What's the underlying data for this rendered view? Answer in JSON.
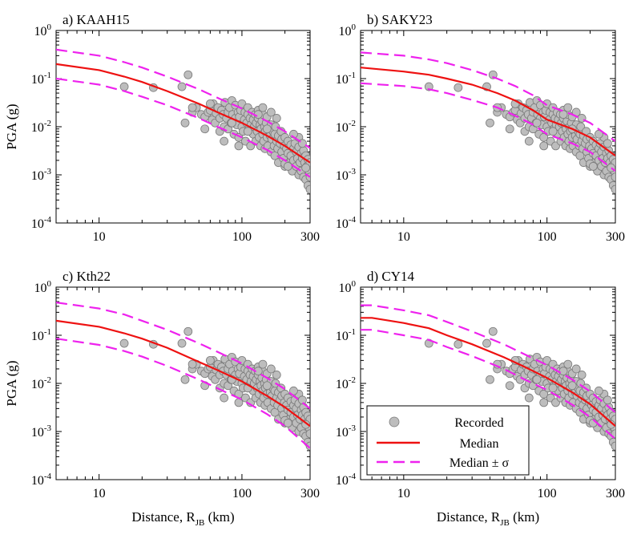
{
  "figure": {
    "ylabel": "PGA (g)",
    "xlabel_main": "Distance, R",
    "xlabel_sub": "JB",
    "xlabel_unit": " (km)",
    "x_ticks": [
      10,
      100,
      300
    ],
    "x_tick_labels": [
      "10",
      "100",
      "300"
    ],
    "y_tick_labels": [
      {
        "base": "10",
        "exp": "0"
      },
      {
        "base": "10",
        "exp": "-1"
      },
      {
        "base": "10",
        "exp": "-2"
      },
      {
        "base": "10",
        "exp": "-3"
      },
      {
        "base": "10",
        "exp": "-4"
      }
    ],
    "legend": {
      "placement": "bottom-right of panel d",
      "recorded": "Recorded",
      "median": "Median",
      "median_sigma": "Median ± σ"
    },
    "colors": {
      "median": "#ee1111",
      "sigma": "#ee22ee",
      "point_fill": "#bdbdbd",
      "point_stroke": "#7a7a7a"
    }
  },
  "chart_data": [
    {
      "type": "scatter",
      "title": "a) KAAH15",
      "x_scale": "log",
      "y_scale": "log",
      "xlim": [
        5,
        300
      ],
      "ylim": [
        0.0001,
        1
      ],
      "median": {
        "x": [
          5,
          10,
          15,
          20,
          30,
          50,
          70,
          100,
          150,
          200,
          300
        ],
        "y": [
          0.2,
          0.15,
          0.11,
          0.085,
          0.055,
          0.03,
          0.019,
          0.012,
          0.0065,
          0.004,
          0.0018
        ]
      },
      "plus_sigma": {
        "x": [
          5,
          10,
          15,
          20,
          30,
          50,
          70,
          100,
          150,
          200,
          300
        ],
        "y": [
          0.4,
          0.3,
          0.22,
          0.17,
          0.11,
          0.06,
          0.038,
          0.024,
          0.013,
          0.008,
          0.0036
        ]
      },
      "minus_sigma": {
        "x": [
          5,
          10,
          15,
          20,
          30,
          50,
          70,
          100,
          150,
          200,
          300
        ],
        "y": [
          0.1,
          0.075,
          0.055,
          0.042,
          0.028,
          0.015,
          0.0095,
          0.006,
          0.0033,
          0.002,
          0.0009
        ]
      }
    },
    {
      "type": "scatter",
      "title": "b) SAKY23",
      "x_scale": "log",
      "y_scale": "log",
      "xlim": [
        5,
        300
      ],
      "ylim": [
        0.0001,
        1
      ],
      "median": {
        "x": [
          5,
          10,
          15,
          20,
          30,
          45,
          60,
          80,
          100,
          150,
          200,
          300
        ],
        "y": [
          0.17,
          0.14,
          0.12,
          0.1,
          0.075,
          0.05,
          0.035,
          0.022,
          0.014,
          0.009,
          0.006,
          0.0025
        ]
      },
      "plus_sigma": {
        "x": [
          5,
          10,
          15,
          20,
          30,
          45,
          60,
          80,
          100,
          150,
          200,
          300
        ],
        "y": [
          0.35,
          0.3,
          0.25,
          0.21,
          0.15,
          0.1,
          0.07,
          0.045,
          0.028,
          0.018,
          0.012,
          0.005
        ]
      },
      "minus_sigma": {
        "x": [
          5,
          10,
          15,
          20,
          30,
          45,
          60,
          80,
          100,
          150,
          200,
          300
        ],
        "y": [
          0.08,
          0.07,
          0.06,
          0.05,
          0.036,
          0.025,
          0.017,
          0.011,
          0.007,
          0.0045,
          0.003,
          0.0012
        ]
      }
    },
    {
      "type": "scatter",
      "title": "c) Kth22",
      "x_scale": "log",
      "y_scale": "log",
      "xlim": [
        5,
        300
      ],
      "ylim": [
        0.0001,
        1
      ],
      "median": {
        "x": [
          5,
          10,
          15,
          20,
          30,
          50,
          70,
          100,
          150,
          200,
          300
        ],
        "y": [
          0.2,
          0.15,
          0.11,
          0.085,
          0.055,
          0.028,
          0.018,
          0.011,
          0.0055,
          0.0032,
          0.0013
        ]
      },
      "plus_sigma": {
        "x": [
          5,
          10,
          15,
          20,
          30,
          50,
          70,
          100,
          150,
          200,
          300
        ],
        "y": [
          0.48,
          0.36,
          0.27,
          0.2,
          0.13,
          0.068,
          0.043,
          0.026,
          0.013,
          0.0076,
          0.003
        ]
      },
      "minus_sigma": {
        "x": [
          5,
          10,
          15,
          20,
          30,
          50,
          70,
          100,
          150,
          200,
          300
        ],
        "y": [
          0.085,
          0.063,
          0.047,
          0.036,
          0.023,
          0.012,
          0.0075,
          0.0046,
          0.0023,
          0.0013,
          0.00045
        ]
      }
    },
    {
      "type": "scatter",
      "title": "d) CY14",
      "x_scale": "log",
      "y_scale": "log",
      "xlim": [
        5,
        300
      ],
      "ylim": [
        0.0001,
        1
      ],
      "median": {
        "x": [
          5,
          6,
          10,
          15,
          20,
          30,
          50,
          70,
          100,
          150,
          200,
          300
        ],
        "y": [
          0.23,
          0.23,
          0.18,
          0.14,
          0.1,
          0.065,
          0.035,
          0.022,
          0.013,
          0.0065,
          0.0037,
          0.0013
        ]
      },
      "plus_sigma": {
        "x": [
          5,
          6,
          10,
          15,
          20,
          30,
          50,
          70,
          100,
          150,
          200,
          300
        ],
        "y": [
          0.42,
          0.42,
          0.33,
          0.26,
          0.19,
          0.12,
          0.065,
          0.04,
          0.024,
          0.012,
          0.0068,
          0.0025
        ]
      },
      "minus_sigma": {
        "x": [
          5,
          6,
          10,
          15,
          20,
          30,
          50,
          70,
          100,
          150,
          200,
          300
        ],
        "y": [
          0.13,
          0.13,
          0.1,
          0.08,
          0.057,
          0.037,
          0.02,
          0.012,
          0.0073,
          0.0036,
          0.002,
          0.0007
        ]
      }
    }
  ],
  "recorded": {
    "x": [
      15,
      24,
      38,
      40,
      42,
      45,
      48,
      52,
      55,
      58,
      60,
      62,
      63,
      65,
      66,
      68,
      70,
      70,
      72,
      74,
      75,
      76,
      78,
      80,
      80,
      82,
      84,
      85,
      86,
      88,
      90,
      90,
      92,
      94,
      95,
      96,
      98,
      100,
      100,
      102,
      104,
      105,
      106,
      108,
      110,
      110,
      112,
      114,
      115,
      116,
      118,
      120,
      120,
      122,
      124,
      125,
      126,
      128,
      130,
      130,
      132,
      134,
      135,
      136,
      138,
      140,
      140,
      142,
      144,
      145,
      146,
      148,
      150,
      150,
      152,
      155,
      158,
      160,
      160,
      162,
      165,
      168,
      170,
      170,
      172,
      175,
      178,
      180,
      180,
      185,
      188,
      190,
      190,
      195,
      198,
      200,
      200,
      205,
      210,
      210,
      215,
      220,
      220,
      225,
      230,
      230,
      235,
      240,
      240,
      245,
      250,
      250,
      255,
      260,
      260,
      265,
      270,
      270,
      275,
      280,
      280,
      285,
      290,
      290,
      295,
      300,
      300,
      45,
      60,
      85,
      110,
      140,
      160,
      200,
      250,
      280,
      75,
      130,
      175,
      230,
      95,
      150,
      210,
      265,
      55,
      300
    ],
    "y": [
      0.068,
      0.065,
      0.068,
      0.012,
      0.12,
      0.02,
      0.025,
      0.018,
      0.016,
      0.02,
      0.022,
      0.014,
      0.03,
      0.012,
      0.019,
      0.025,
      0.015,
      0.008,
      0.022,
      0.018,
      0.01,
      0.032,
      0.015,
      0.02,
      0.009,
      0.025,
      0.012,
      0.035,
      0.018,
      0.007,
      0.015,
      0.028,
      0.011,
      0.02,
      0.006,
      0.016,
      0.022,
      0.01,
      0.03,
      0.008,
      0.014,
      0.02,
      0.005,
      0.012,
      0.018,
      0.025,
      0.009,
      0.015,
      0.004,
      0.011,
      0.02,
      0.007,
      0.014,
      0.01,
      0.018,
      0.005,
      0.012,
      0.008,
      0.015,
      0.022,
      0.006,
      0.011,
      0.004,
      0.009,
      0.013,
      0.007,
      0.018,
      0.005,
      0.01,
      0.0035,
      0.008,
      0.012,
      0.006,
      0.016,
      0.004,
      0.009,
      0.0065,
      0.003,
      0.011,
      0.0055,
      0.008,
      0.004,
      0.007,
      0.0025,
      0.01,
      0.005,
      0.0035,
      0.0065,
      0.0018,
      0.0045,
      0.008,
      0.003,
      0.0055,
      0.0022,
      0.004,
      0.006,
      0.0015,
      0.0035,
      0.0028,
      0.005,
      0.0018,
      0.0042,
      0.0025,
      0.0012,
      0.0035,
      0.002,
      0.0045,
      0.0015,
      0.003,
      0.0022,
      0.001,
      0.0038,
      0.0018,
      0.0028,
      0.0012,
      0.0022,
      0.0032,
      0.0009,
      0.0018,
      0.0025,
      0.0008,
      0.0015,
      0.0021,
      0.0006,
      0.0012,
      0.0018,
      0.0005,
      0.025,
      0.03,
      0.012,
      0.008,
      0.025,
      0.02,
      0.0017,
      0.006,
      0.0014,
      0.005,
      0.018,
      0.015,
      0.007,
      0.004,
      0.009,
      0.0015,
      0.0045,
      0.009,
      0.0009
    ]
  }
}
